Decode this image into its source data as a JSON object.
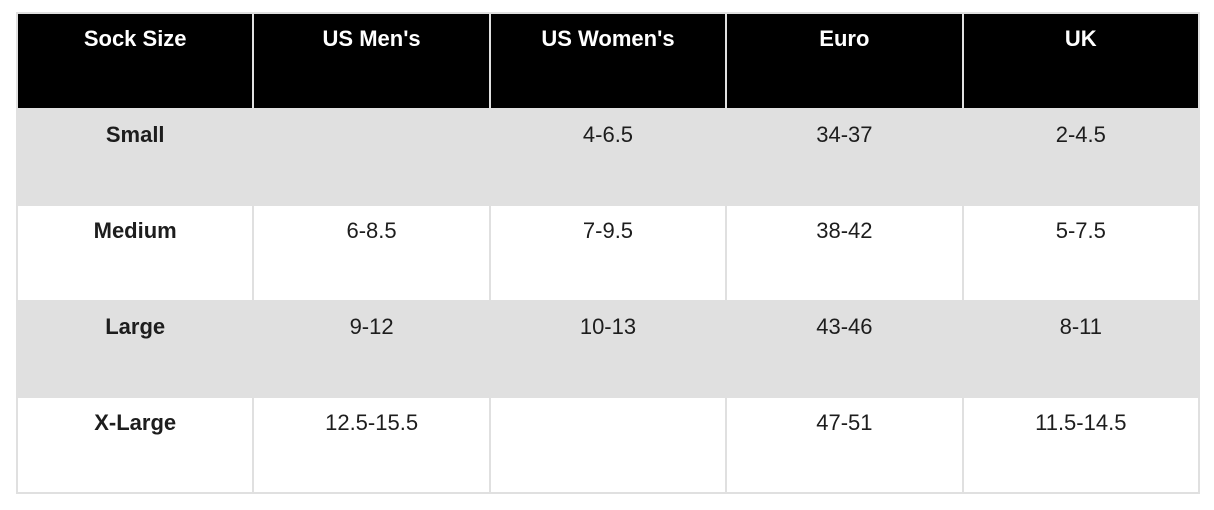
{
  "chart_data": {
    "type": "table",
    "columns": [
      "Sock Size",
      "US Men's",
      "US Women's",
      "Euro",
      "UK"
    ],
    "rows": [
      [
        "Small",
        "",
        "4-6.5",
        "34-37",
        "2-4.5"
      ],
      [
        "Medium",
        "6-8.5",
        "7-9.5",
        "38-42",
        "5-7.5"
      ],
      [
        "Large",
        "9-12",
        "10-13",
        "43-46",
        "8-11"
      ],
      [
        "X-Large",
        "12.5-15.5",
        "",
        "47-51",
        "11.5-14.5"
      ]
    ],
    "layout_hints": {
      "header_row": "black background, white bold centered text",
      "body_rows": "alternating shaded/plain starting shaded, labels bold, values centered top-aligned"
    }
  },
  "colors": {
    "header_bg": "#000000",
    "header_text": "#ffffff",
    "row_shaded_bg": "#e0e0e0",
    "row_plain_bg": "#ffffff",
    "border": "#e0e0e0",
    "body_text": "#1d1d1d"
  }
}
